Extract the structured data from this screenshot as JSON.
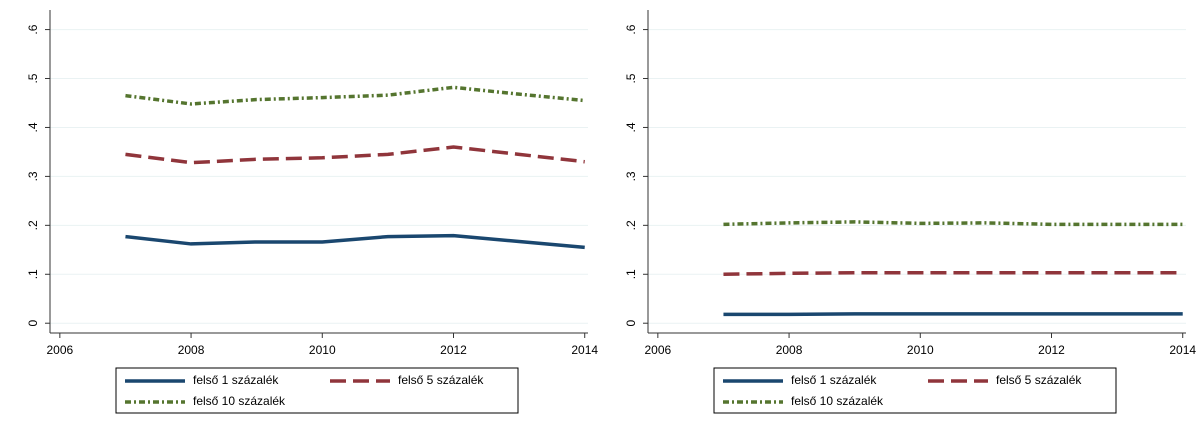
{
  "chart_data": [
    {
      "type": "line",
      "x": [
        2007,
        2008,
        2009,
        2010,
        2011,
        2012,
        2013,
        2014
      ],
      "xlim": [
        2005.85,
        2014.05
      ],
      "xticks": [
        2006,
        2008,
        2010,
        2012,
        2014
      ],
      "ylim": [
        -0.02,
        0.64
      ],
      "yticks": [
        0,
        {
          "value": 0.1,
          "label": ".1"
        },
        {
          "value": 0.2,
          "label": ".2"
        },
        {
          "value": 0.3,
          "label": ".3"
        },
        {
          "value": 0.4,
          "label": ".4"
        },
        {
          "value": 0.5,
          "label": ".5"
        },
        {
          "value": 0.6,
          "label": ".6"
        }
      ],
      "grid": true,
      "series": [
        {
          "name": "felső 1 százalék",
          "color": "#1a476f",
          "dash": "solid",
          "values": [
            0.177,
            0.162,
            0.166,
            0.166,
            0.177,
            0.179,
            0.167,
            0.155
          ]
        },
        {
          "name": "felső 5 százalék",
          "color": "#90353b",
          "dash": "long",
          "values": [
            0.345,
            0.328,
            0.335,
            0.338,
            0.345,
            0.36,
            0.345,
            0.33
          ]
        },
        {
          "name": "felső 10 százalék",
          "color": "#55752f",
          "dash": "dashdot",
          "values": [
            0.465,
            0.448,
            0.457,
            0.461,
            0.466,
            0.482,
            0.468,
            0.455
          ]
        }
      ]
    },
    {
      "type": "line",
      "x": [
        2007,
        2008,
        2009,
        2010,
        2011,
        2012,
        2013,
        2014
      ],
      "xlim": [
        2005.85,
        2014.05
      ],
      "xticks": [
        2006,
        2008,
        2010,
        2012,
        2014
      ],
      "ylim": [
        -0.02,
        0.64
      ],
      "yticks": [
        0,
        {
          "value": 0.1,
          "label": ".1"
        },
        {
          "value": 0.2,
          "label": ".2"
        },
        {
          "value": 0.3,
          "label": ".3"
        },
        {
          "value": 0.4,
          "label": ".4"
        },
        {
          "value": 0.5,
          "label": ".5"
        },
        {
          "value": 0.6,
          "label": ".6"
        }
      ],
      "grid": true,
      "series": [
        {
          "name": "felső 1 százalék",
          "color": "#1a476f",
          "dash": "solid",
          "values": [
            0.018,
            0.018,
            0.019,
            0.019,
            0.019,
            0.019,
            0.019,
            0.019
          ]
        },
        {
          "name": "felső 5 százalék",
          "color": "#90353b",
          "dash": "long",
          "values": [
            0.1,
            0.102,
            0.103,
            0.103,
            0.103,
            0.103,
            0.103,
            0.103
          ]
        },
        {
          "name": "felső 10 százalék",
          "color": "#55752f",
          "dash": "dashdot",
          "values": [
            0.202,
            0.205,
            0.207,
            0.204,
            0.205,
            0.202,
            0.202,
            0.202
          ]
        }
      ]
    }
  ]
}
